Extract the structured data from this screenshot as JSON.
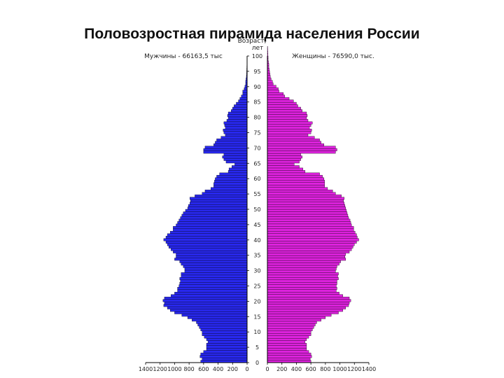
{
  "chart_data": {
    "type": "bar",
    "orientation": "horizontal-pyramid",
    "title": "Половозростная пирамида населения России",
    "axis_title_lines": [
      "Возраст,",
      "лет"
    ],
    "left_label": "Мужчины - 66163,5 тыс",
    "right_label": "Женщины - 76590,0 тыс.",
    "age_ticks": [
      "100",
      "95",
      "90",
      "85",
      "80",
      "75",
      "70",
      "65",
      "60",
      "55",
      "50",
      "45",
      "40",
      "35",
      "30",
      "25",
      "20",
      "15",
      "10",
      "5",
      "0"
    ],
    "male_ticks": [
      "1400",
      "1200",
      "1000",
      "800",
      "600",
      "400",
      "200",
      "0"
    ],
    "female_ticks": [
      "0",
      "200",
      "400",
      "600",
      "800",
      "1000",
      "1200",
      "1400"
    ],
    "xlim": [
      0,
      1400
    ],
    "ylim": [
      0,
      100
    ],
    "series": [
      {
        "name": "Мужчины",
        "color": "#2828ee",
        "values": [
          640,
          620,
          650,
          640,
          600,
          560,
          560,
          560,
          540,
          560,
          590,
          620,
          620,
          640,
          660,
          680,
          700,
          760,
          820,
          900,
          1000,
          1060,
          1100,
          1150,
          1140,
          1160,
          1140,
          1050,
          1000,
          960,
          960,
          940,
          930,
          920,
          930,
          910,
          910,
          860,
          860,
          880,
          910,
          930,
          1000,
          980,
          980,
          1020,
          1050,
          1080,
          1100,
          1120,
          1150,
          1120,
          1100,
          1060,
          1020,
          1020,
          980,
          960,
          940,
          920,
          900,
          880,
          850,
          820,
          810,
          790,
          780,
          790,
          720,
          620,
          580,
          500,
          460,
          460,
          450,
          440,
          420,
          380,
          260,
          250,
          210,
          170,
          290,
          320,
          340,
          320,
          600,
          600,
          580,
          460,
          440,
          420,
          360,
          300,
          320,
          330,
          300,
          310,
          320,
          280,
          260,
          270,
          260,
          220,
          200,
          180,
          150,
          120,
          100,
          80,
          60,
          60,
          40,
          30,
          20,
          20,
          15,
          10,
          8,
          6,
          5,
          4,
          3,
          2,
          1,
          1
        ]
      },
      {
        "name": "Женщины",
        "color": "#dd22dd",
        "values": [
          600,
          590,
          610,
          600,
          570,
          540,
          540,
          540,
          520,
          540,
          570,
          600,
          600,
          620,
          640,
          660,
          680,
          740,
          800,
          880,
          980,
          1040,
          1080,
          1120,
          1130,
          1150,
          1130,
          1040,
          990,
          950,
          960,
          950,
          960,
          960,
          980,
          970,
          980,
          940,
          950,
          960,
          990,
          1010,
          1080,
          1070,
          1080,
          1130,
          1160,
          1180,
          1200,
          1230,
          1260,
          1240,
          1230,
          1210,
          1190,
          1190,
          1160,
          1150,
          1140,
          1120,
          1110,
          1100,
          1090,
          1080,
          1070,
          1060,
          1050,
          1060,
          1020,
          940,
          900,
          830,
          790,
          790,
          790,
          780,
          760,
          720,
          520,
          490,
          440,
          370,
          440,
          460,
          480,
          460,
          940,
          960,
          940,
          780,
          740,
          720,
          650,
          560,
          600,
          610,
          580,
          600,
          620,
          560,
          540,
          550,
          540,
          480,
          460,
          420,
          400,
          360,
          300,
          240,
          220,
          160,
          150,
          120,
          80,
          70,
          50,
          40,
          35,
          30,
          25,
          20,
          20,
          15,
          10,
          10,
          8,
          6,
          5,
          4
        ]
      }
    ]
  }
}
